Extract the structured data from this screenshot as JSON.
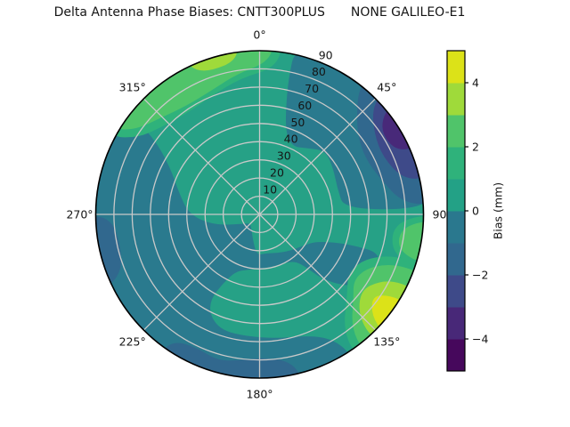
{
  "figure": {
    "title_part1": "Delta Antenna Phase Biases: CNTT300PLUS",
    "title_part2": "NONE GALILEO-E1"
  },
  "chart_data": {
    "type": "heatmap",
    "subtype": "polar_filled_contour",
    "title": "Delta Antenna Phase Biases: CNTT300PLUS    NONE GALILEO-E1",
    "theta_zero_location": "top",
    "theta_direction": "clockwise",
    "theta_labels": [
      {
        "label": "0°",
        "angle_deg": 0
      },
      {
        "label": "45°",
        "angle_deg": 45
      },
      {
        "label": "90",
        "angle_deg": 90
      },
      {
        "label": "135°",
        "angle_deg": 135
      },
      {
        "label": "180°",
        "angle_deg": 180
      },
      {
        "label": "225°",
        "angle_deg": 225
      },
      {
        "label": "270°",
        "angle_deg": 270
      },
      {
        "label": "315°",
        "angle_deg": 315
      }
    ],
    "radial_ticks": [
      {
        "label": "10",
        "value": 10
      },
      {
        "label": "20",
        "value": 20
      },
      {
        "label": "30",
        "value": 30
      },
      {
        "label": "40",
        "value": 40
      },
      {
        "label": "50",
        "value": 50
      },
      {
        "label": "60",
        "value": 60
      },
      {
        "label": "70",
        "value": 70
      },
      {
        "label": "80",
        "value": 80
      },
      {
        "label": "90",
        "value": 90
      }
    ],
    "radial_max": 90,
    "radial_label_angle_deg": 22.5,
    "grid": {
      "ring_values": [
        10,
        20,
        30,
        40,
        50,
        60,
        70,
        80
      ],
      "spoke_step_deg": 45,
      "color": "#c9c9c9"
    },
    "colorbar": {
      "label": "Bias (mm)",
      "range_mm": [
        -5,
        5
      ],
      "ticks": [
        {
          "label": "4",
          "value": 4
        },
        {
          "label": "2",
          "value": 2
        },
        {
          "label": "0",
          "value": 0
        },
        {
          "label": "−2",
          "value": -2
        },
        {
          "label": "−4",
          "value": -4
        }
      ],
      "level_colors_bottom_to_top": [
        "#46085c",
        "#482878",
        "#3e4a89",
        "#31688e",
        "#2a788e",
        "#23a186",
        "#2fb27b",
        "#50c46a",
        "#9fda3a",
        "#dce218"
      ]
    },
    "base_region": {
      "level_mm": "0 to 1",
      "color": "#26a186"
    },
    "regions": [
      {
        "name": "southwest-dark-teal",
        "level_mm": "-1 to 0",
        "color": "#2a7a8e",
        "points": [
          [
            147,
            1.05
          ],
          [
            165,
            1.05
          ],
          [
            185,
            1.05
          ],
          [
            205,
            1.05
          ],
          [
            225,
            1.05
          ],
          [
            245,
            1.05
          ],
          [
            265,
            1.05
          ],
          [
            285,
            1.05
          ],
          [
            308,
            1.05
          ],
          [
            306,
            0.8
          ],
          [
            298,
            0.62
          ],
          [
            285,
            0.51
          ],
          [
            270,
            0.43
          ],
          [
            257,
            0.29
          ],
          [
            243,
            0.13
          ],
          [
            228,
            0.08
          ],
          [
            210,
            0.1
          ],
          [
            195,
            0.16
          ],
          [
            184,
            0.25
          ],
          [
            170,
            0.24
          ],
          [
            155,
            0.26
          ],
          [
            140,
            0.29
          ],
          [
            125,
            0.33
          ],
          [
            116,
            0.38
          ],
          [
            110,
            0.5
          ],
          [
            108,
            0.64
          ],
          [
            108,
            0.76
          ],
          [
            115,
            0.83
          ],
          [
            123,
            0.79
          ],
          [
            130,
            0.68
          ],
          [
            136,
            0.55
          ],
          [
            139,
            0.42
          ],
          [
            143,
            0.36
          ],
          [
            152,
            0.335
          ],
          [
            165,
            0.33
          ],
          [
            178,
            0.33
          ],
          [
            192,
            0.345
          ],
          [
            203,
            0.38
          ],
          [
            208,
            0.48
          ],
          [
            210,
            0.6
          ],
          [
            206,
            0.69
          ],
          [
            198,
            0.745
          ],
          [
            186,
            0.75
          ],
          [
            172,
            0.765
          ],
          [
            160,
            0.79
          ],
          [
            152,
            0.85
          ],
          [
            148,
            0.94
          ]
        ]
      },
      {
        "name": "northeast-dark-teal",
        "level_mm": "-1 to 0",
        "color": "#2a7a8e",
        "points": [
          [
            12,
            1.05
          ],
          [
            28,
            1.05
          ],
          [
            45,
            1.05
          ],
          [
            62,
            1.05
          ],
          [
            78,
            1.05
          ],
          [
            88,
            1.05
          ],
          [
            87,
            0.52
          ],
          [
            72,
            0.5
          ],
          [
            58,
            0.53
          ],
          [
            46,
            0.56
          ],
          [
            36,
            0.5
          ],
          [
            26,
            0.46
          ],
          [
            18,
            0.52
          ],
          [
            14,
            0.66
          ],
          [
            12,
            0.85
          ]
        ]
      },
      {
        "name": "topleft-green-fringe",
        "level_mm": "1 to 2",
        "color": "#2fb27b",
        "points": [
          [
            297,
            1.05
          ],
          [
            315,
            1.05
          ],
          [
            335,
            1.05
          ],
          [
            355,
            1.05
          ],
          [
            8,
            1.05
          ],
          [
            6,
            0.9
          ],
          [
            352,
            0.84
          ],
          [
            338,
            0.78
          ],
          [
            325,
            0.76
          ],
          [
            312,
            0.8
          ],
          [
            302,
            0.88
          ]
        ]
      },
      {
        "name": "topleft-light-green",
        "level_mm": "2 to 3",
        "color": "#50c46a",
        "points": [
          [
            300,
            1.05
          ],
          [
            318,
            1.05
          ],
          [
            338,
            1.05
          ],
          [
            356,
            1.05
          ],
          [
            5,
            1.05
          ],
          [
            3,
            0.93
          ],
          [
            351,
            0.87
          ],
          [
            338,
            0.81
          ],
          [
            326,
            0.8
          ],
          [
            315,
            0.84
          ],
          [
            304,
            0.92
          ]
        ]
      },
      {
        "name": "topleft-yellow-green",
        "level_mm": "3 to 4",
        "color": "#9fda3a",
        "points": [
          [
            334,
            1.05
          ],
          [
            344,
            1.05
          ],
          [
            353,
            1.05
          ],
          [
            351,
            0.95
          ],
          [
            342,
            0.925
          ],
          [
            336,
            0.96
          ]
        ]
      },
      {
        "name": "southeast-green-fringe",
        "level_mm": "1 to 2",
        "color": "#2fb27b",
        "points": [
          [
            107,
            1.05
          ],
          [
            120,
            1.05
          ],
          [
            133,
            1.05
          ],
          [
            146,
            1.05
          ],
          [
            144,
            0.87
          ],
          [
            133,
            0.73
          ],
          [
            124,
            0.65
          ],
          [
            115,
            0.68
          ],
          [
            109,
            0.78
          ],
          [
            107,
            0.9
          ]
        ]
      },
      {
        "name": "southeast-light-green",
        "level_mm": "2 to 3",
        "color": "#50c46a",
        "points": [
          [
            110,
            1.05
          ],
          [
            122,
            1.05
          ],
          [
            134,
            1.05
          ],
          [
            143,
            1.05
          ],
          [
            141,
            0.89
          ],
          [
            132,
            0.77
          ],
          [
            125,
            0.7
          ],
          [
            117,
            0.73
          ],
          [
            112,
            0.82
          ],
          [
            110,
            0.92
          ]
        ]
      },
      {
        "name": "southeast-yellow-green",
        "level_mm": "3 to 4",
        "color": "#9fda3a",
        "points": [
          [
            116,
            1.05
          ],
          [
            126,
            1.05
          ],
          [
            138,
            1.05
          ],
          [
            136,
            0.87
          ],
          [
            127,
            0.77
          ],
          [
            119,
            0.84
          ],
          [
            116,
            0.94
          ]
        ]
      },
      {
        "name": "southeast-yellow",
        "level_mm": "4 to 5",
        "color": "#dce218",
        "points": [
          [
            121,
            1.05
          ],
          [
            128,
            1.05
          ],
          [
            134,
            1.05
          ],
          [
            132,
            0.92
          ],
          [
            126,
            0.85
          ],
          [
            122,
            0.93
          ]
        ]
      },
      {
        "name": "east-green-fringe",
        "level_mm": "1 to 2",
        "color": "#2fb27b",
        "points": [
          [
            90,
            1.05
          ],
          [
            99,
            1.05
          ],
          [
            109,
            1.05
          ],
          [
            107,
            0.86
          ],
          [
            98,
            0.81
          ],
          [
            92,
            0.88
          ]
        ]
      },
      {
        "name": "east-light-green",
        "level_mm": "2 to 3",
        "color": "#50c46a",
        "points": [
          [
            92,
            1.05
          ],
          [
            100,
            1.05
          ],
          [
            107,
            1.05
          ],
          [
            105,
            0.89
          ],
          [
            99,
            0.855
          ],
          [
            94,
            0.91
          ]
        ]
      },
      {
        "name": "east-blue",
        "level_mm": "-2 to -1",
        "color": "#31688e",
        "points": [
          [
            38,
            1.05
          ],
          [
            50,
            1.05
          ],
          [
            62,
            1.05
          ],
          [
            75,
            1.05
          ],
          [
            87,
            1.05
          ],
          [
            85,
            0.87
          ],
          [
            74,
            0.77
          ],
          [
            62,
            0.73
          ],
          [
            51,
            0.77
          ],
          [
            43,
            0.87
          ],
          [
            39,
            0.96
          ]
        ]
      },
      {
        "name": "east-indigo",
        "level_mm": "-3 to -2",
        "color": "#3e4a89",
        "points": [
          [
            45,
            1.05
          ],
          [
            55,
            1.05
          ],
          [
            66,
            1.05
          ],
          [
            78,
            1.05
          ],
          [
            76,
            0.9
          ],
          [
            65,
            0.83
          ],
          [
            55,
            0.855
          ],
          [
            47,
            0.94
          ]
        ]
      },
      {
        "name": "east-purple",
        "level_mm": "-4 to -3",
        "color": "#482979",
        "points": [
          [
            50,
            1.05
          ],
          [
            58,
            1.05
          ],
          [
            67,
            1.05
          ],
          [
            65,
            0.92
          ],
          [
            57,
            0.895
          ],
          [
            52,
            0.95
          ]
        ]
      },
      {
        "name": "south-blue",
        "level_mm": "-2 to -1",
        "color": "#31688e",
        "points": [
          [
            165,
            1.05
          ],
          [
            180,
            1.05
          ],
          [
            196,
            1.05
          ],
          [
            216,
            1.05
          ],
          [
            214,
            0.93
          ],
          [
            205,
            0.9
          ],
          [
            196,
            0.93
          ],
          [
            188,
            0.9
          ],
          [
            178,
            0.875
          ],
          [
            168,
            0.92
          ]
        ]
      },
      {
        "name": "west-blue",
        "level_mm": "-2 to -1",
        "color": "#31688e",
        "points": [
          [
            244,
            1.05
          ],
          [
            256,
            1.05
          ],
          [
            270,
            1.05
          ],
          [
            268,
            0.9
          ],
          [
            256,
            0.87
          ],
          [
            247,
            0.92
          ]
        ]
      }
    ]
  }
}
